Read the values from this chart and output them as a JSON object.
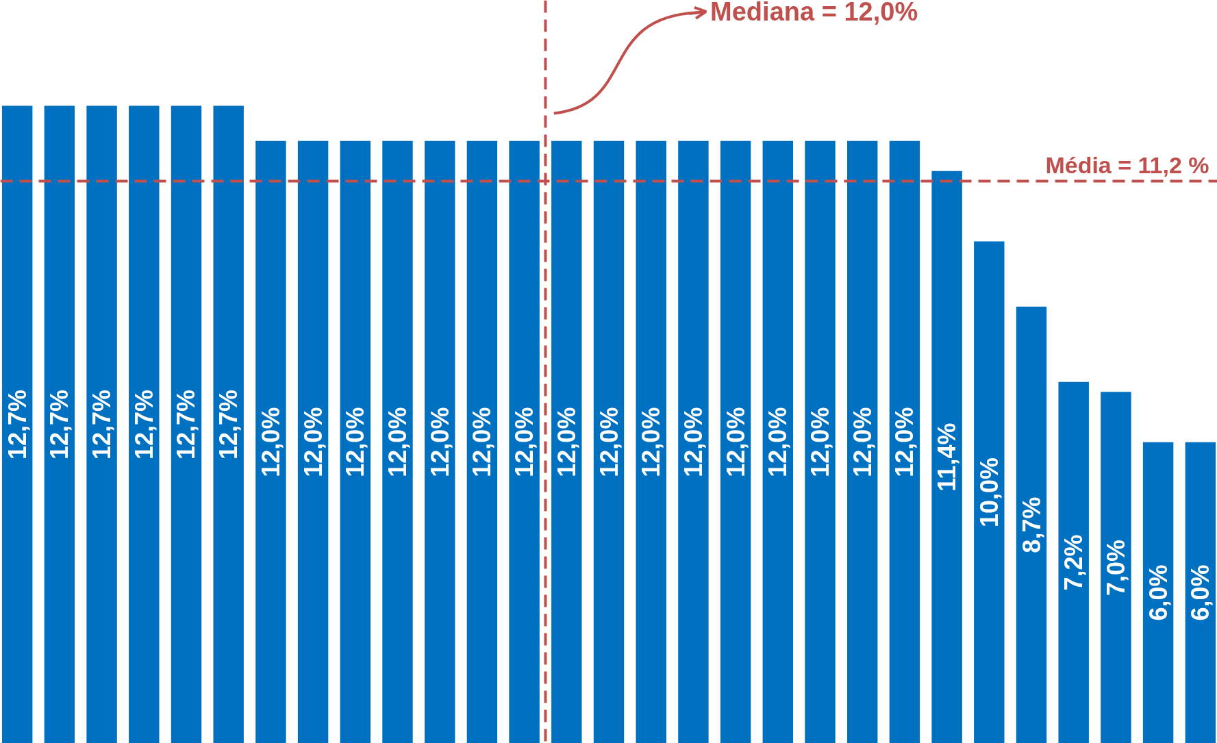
{
  "chart_data": {
    "type": "bar",
    "categories": [
      null,
      null,
      null,
      null,
      null,
      null,
      null,
      null,
      null,
      null,
      null,
      null,
      null,
      null,
      null,
      null,
      null,
      null,
      null,
      null,
      null,
      null,
      null,
      null,
      null,
      null,
      null,
      null,
      null
    ],
    "values": [
      12.7,
      12.7,
      12.7,
      12.7,
      12.7,
      12.7,
      12.0,
      12.0,
      12.0,
      12.0,
      12.0,
      12.0,
      12.0,
      12.0,
      12.0,
      12.0,
      12.0,
      12.0,
      12.0,
      12.0,
      12.0,
      12.0,
      11.4,
      10.0,
      8.7,
      7.2,
      7.0,
      6.0,
      6.0
    ],
    "color": "#0070c0",
    "data_labels": true,
    "value_labels": [
      "12,7%",
      "12,7%",
      "12,7%",
      "12,7%",
      "12,7%",
      "12,7%",
      "12,0%",
      "12,0%",
      "12,0%",
      "12,0%",
      "12,0%",
      "12,0%",
      "12,0%",
      "12,0%",
      "12,0%",
      "12,0%",
      "12,0%",
      "12,0%",
      "12,0%",
      "12,0%",
      "12,0%",
      "12,0%",
      "11,4%",
      "10,0%",
      "8,7%",
      "7,2%",
      "7,0%",
      "6,0%",
      "6,0%"
    ],
    "ylim": [
      0,
      14.8
    ],
    "tick_labels": false,
    "ref_lines": [
      {
        "axis": "y",
        "value": 11.2,
        "label": "Média = 11,2 %",
        "color": "#c0504d",
        "line_style": "dashed"
      }
    ],
    "annotations": [
      "Mediana = 12,0%"
    ]
  }
}
